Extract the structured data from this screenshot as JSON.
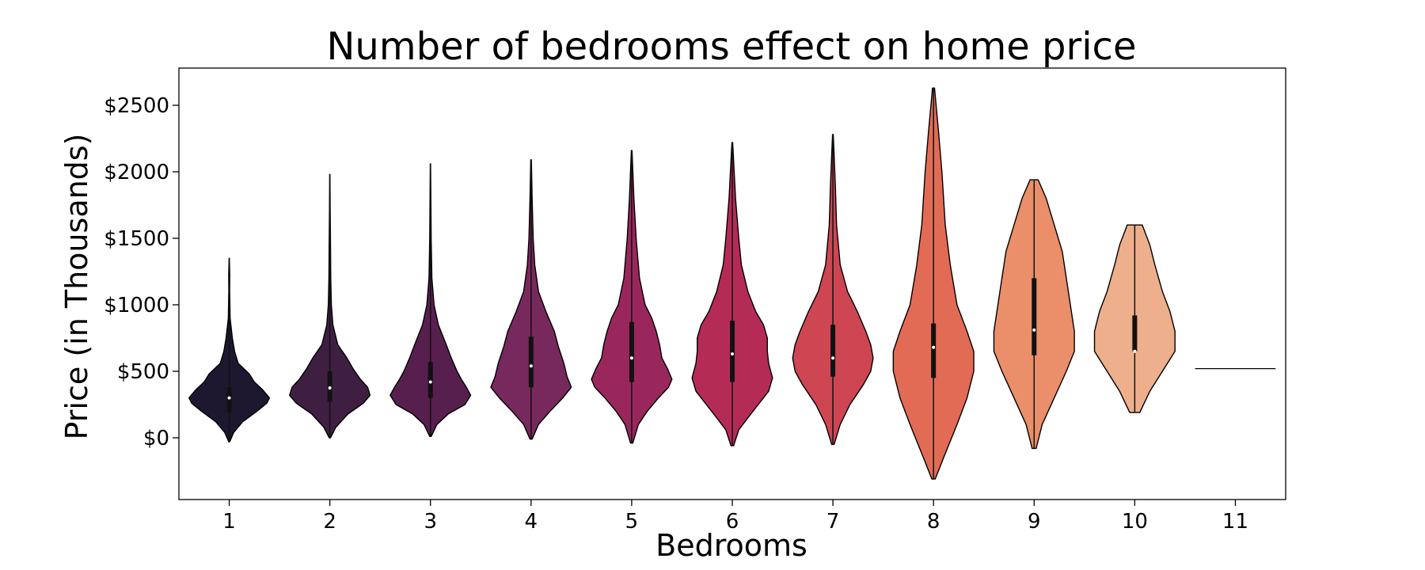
{
  "chart_data": {
    "type": "violin",
    "title": "Number of bedrooms effect on home price",
    "xlabel": "Bedrooms",
    "ylabel": "Price (in Thousands)",
    "categories": [
      "1",
      "2",
      "3",
      "4",
      "5",
      "6",
      "7",
      "8",
      "9",
      "10",
      "11"
    ],
    "y_ticks": [
      {
        "value": 0,
        "label": "$0"
      },
      {
        "value": 500,
        "label": "$500"
      },
      {
        "value": 1000,
        "label": "$1000"
      },
      {
        "value": 1500,
        "label": "$1500"
      },
      {
        "value": 2000,
        "label": "$2000"
      },
      {
        "value": 2500,
        "label": "$2500"
      }
    ],
    "ylim": [
      -460,
      2780
    ],
    "grid": false,
    "violins": [
      {
        "category": "1",
        "color": "#1e1730",
        "min": -30,
        "max": 1350,
        "q1": 190,
        "median": 300,
        "q3": 380,
        "profile": [
          [
            -30,
            0.01
          ],
          [
            40,
            0.1
          ],
          [
            120,
            0.3
          ],
          [
            200,
            0.62
          ],
          [
            260,
            0.84
          ],
          [
            300,
            0.9
          ],
          [
            360,
            0.75
          ],
          [
            420,
            0.56
          ],
          [
            480,
            0.45
          ],
          [
            560,
            0.2
          ],
          [
            650,
            0.12
          ],
          [
            750,
            0.07
          ],
          [
            900,
            0.02
          ],
          [
            1100,
            0.01
          ],
          [
            1230,
            0.012
          ],
          [
            1350,
            0.003
          ]
        ]
      },
      {
        "category": "2",
        "color": "#3e1f42",
        "min": 0,
        "max": 1980,
        "q1": 270,
        "median": 375,
        "q3": 500,
        "profile": [
          [
            0,
            0.01
          ],
          [
            80,
            0.1
          ],
          [
            180,
            0.3
          ],
          [
            260,
            0.55
          ],
          [
            320,
            0.66
          ],
          [
            380,
            0.62
          ],
          [
            440,
            0.5
          ],
          [
            520,
            0.38
          ],
          [
            600,
            0.28
          ],
          [
            700,
            0.13
          ],
          [
            850,
            0.05
          ],
          [
            1000,
            0.025
          ],
          [
            1200,
            0.015
          ],
          [
            1400,
            0.012
          ],
          [
            1700,
            0.006
          ],
          [
            1980,
            0.002
          ]
        ]
      },
      {
        "category": "3",
        "color": "#571f4e",
        "min": 10,
        "max": 2060,
        "q1": 300,
        "median": 420,
        "q3": 570,
        "profile": [
          [
            10,
            0.01
          ],
          [
            100,
            0.09
          ],
          [
            180,
            0.25
          ],
          [
            250,
            0.48
          ],
          [
            320,
            0.56
          ],
          [
            380,
            0.5
          ],
          [
            440,
            0.43
          ],
          [
            500,
            0.37
          ],
          [
            600,
            0.29
          ],
          [
            700,
            0.22
          ],
          [
            850,
            0.11
          ],
          [
            1000,
            0.05
          ],
          [
            1200,
            0.02
          ],
          [
            1500,
            0.01
          ],
          [
            1800,
            0.006
          ],
          [
            2060,
            0.002
          ]
        ]
      },
      {
        "category": "4",
        "color": "#77285c",
        "min": -10,
        "max": 2090,
        "q1": 380,
        "median": 540,
        "q3": 760,
        "profile": [
          [
            -10,
            0.01
          ],
          [
            100,
            0.07
          ],
          [
            200,
            0.18
          ],
          [
            300,
            0.3
          ],
          [
            380,
            0.38
          ],
          [
            460,
            0.34
          ],
          [
            560,
            0.31
          ],
          [
            680,
            0.26
          ],
          [
            800,
            0.22
          ],
          [
            950,
            0.14
          ],
          [
            1100,
            0.07
          ],
          [
            1300,
            0.035
          ],
          [
            1500,
            0.02
          ],
          [
            1800,
            0.01
          ],
          [
            2090,
            0.003
          ]
        ]
      },
      {
        "category": "5",
        "color": "#99275c",
        "min": -40,
        "max": 2160,
        "q1": 420,
        "median": 600,
        "q3": 870,
        "profile": [
          [
            -40,
            0.01
          ],
          [
            100,
            0.06
          ],
          [
            200,
            0.14
          ],
          [
            300,
            0.24
          ],
          [
            380,
            0.33
          ],
          [
            440,
            0.36
          ],
          [
            520,
            0.32
          ],
          [
            600,
            0.27
          ],
          [
            700,
            0.25
          ],
          [
            800,
            0.22
          ],
          [
            900,
            0.18
          ],
          [
            1000,
            0.12
          ],
          [
            1200,
            0.07
          ],
          [
            1500,
            0.04
          ],
          [
            1800,
            0.02
          ],
          [
            2160,
            0.003
          ]
        ]
      },
      {
        "category": "6",
        "color": "#b42b56",
        "min": -60,
        "max": 2220,
        "q1": 420,
        "median": 630,
        "q3": 880,
        "profile": [
          [
            -60,
            0.01
          ],
          [
            60,
            0.05
          ],
          [
            150,
            0.12
          ],
          [
            250,
            0.2
          ],
          [
            350,
            0.28
          ],
          [
            450,
            0.31
          ],
          [
            560,
            0.28
          ],
          [
            650,
            0.27
          ],
          [
            750,
            0.27
          ],
          [
            850,
            0.24
          ],
          [
            950,
            0.18
          ],
          [
            1100,
            0.12
          ],
          [
            1300,
            0.07
          ],
          [
            1500,
            0.05
          ],
          [
            1800,
            0.025
          ],
          [
            2220,
            0.003
          ]
        ]
      },
      {
        "category": "7",
        "color": "#cd4652",
        "min": -50,
        "max": 2280,
        "q1": 460,
        "median": 600,
        "q3": 850,
        "profile": [
          [
            -50,
            0.01
          ],
          [
            100,
            0.06
          ],
          [
            250,
            0.14
          ],
          [
            400,
            0.25
          ],
          [
            500,
            0.31
          ],
          [
            600,
            0.33
          ],
          [
            700,
            0.31
          ],
          [
            800,
            0.27
          ],
          [
            950,
            0.2
          ],
          [
            1100,
            0.12
          ],
          [
            1300,
            0.06
          ],
          [
            1600,
            0.03
          ],
          [
            1900,
            0.02
          ],
          [
            2280,
            0.003
          ]
        ]
      },
      {
        "category": "8",
        "color": "#e26b55",
        "min": -310,
        "max": 2630,
        "q1": 450,
        "median": 680,
        "q3": 860,
        "profile": [
          [
            -310,
            0.005
          ],
          [
            -150,
            0.03
          ],
          [
            100,
            0.07
          ],
          [
            300,
            0.1
          ],
          [
            500,
            0.12
          ],
          [
            650,
            0.12
          ],
          [
            800,
            0.1
          ],
          [
            1000,
            0.07
          ],
          [
            1300,
            0.05
          ],
          [
            1600,
            0.035
          ],
          [
            2000,
            0.025
          ],
          [
            2300,
            0.015
          ],
          [
            2630,
            0.003
          ]
        ]
      },
      {
        "category": "9",
        "color": "#ea8f6a",
        "min": -80,
        "max": 1940,
        "q1": 620,
        "median": 810,
        "q3": 1200,
        "profile": [
          [
            -80,
            0.005
          ],
          [
            100,
            0.02
          ],
          [
            300,
            0.05
          ],
          [
            500,
            0.08
          ],
          [
            650,
            0.1
          ],
          [
            800,
            0.1
          ],
          [
            1000,
            0.09
          ],
          [
            1200,
            0.08
          ],
          [
            1400,
            0.07
          ],
          [
            1600,
            0.05
          ],
          [
            1800,
            0.03
          ],
          [
            1940,
            0.01
          ]
        ]
      },
      {
        "category": "10",
        "color": "#edaf8c",
        "min": 190,
        "max": 1600,
        "q1": 650,
        "median": 650,
        "q3": 920,
        "profile": [
          [
            190,
            0.02
          ],
          [
            350,
            0.06
          ],
          [
            500,
            0.11
          ],
          [
            650,
            0.16
          ],
          [
            800,
            0.16
          ],
          [
            950,
            0.14
          ],
          [
            1100,
            0.11
          ],
          [
            1300,
            0.08
          ],
          [
            1450,
            0.06
          ],
          [
            1600,
            0.03
          ]
        ]
      },
      {
        "category": "11",
        "color": "#000000",
        "flat": true,
        "value": 520
      }
    ]
  }
}
